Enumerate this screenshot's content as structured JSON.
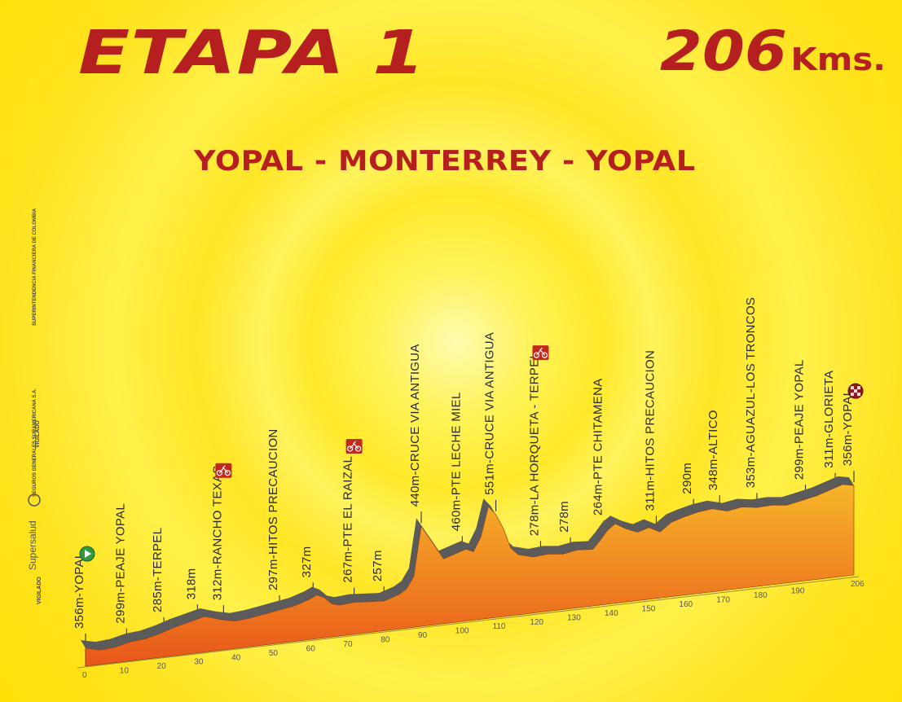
{
  "title": "ETAPA 1",
  "distance": {
    "value": "206",
    "unit": "Kms."
  },
  "route": "YOPAL - MONTERREY - YOPAL",
  "sponsors": {
    "vigilado": "VIGILADO",
    "supersalud": "Supersalud",
    "financiera": "SUPERINTENDENCIA FINANCIERA DE COLOMBIA",
    "seguros": "SEGUROS GENERALES SURAMERICANA S.A."
  },
  "colors": {
    "title": "#b51f1f",
    "fill_top": "#f7b52a",
    "fill_bottom": "#e8561a",
    "road": "#5b5b5b"
  },
  "chart_data": {
    "type": "area",
    "x_unit": "km",
    "x_ticks": [
      0,
      10,
      20,
      30,
      40,
      50,
      60,
      70,
      80,
      90,
      100,
      110,
      120,
      130,
      140,
      150,
      160,
      170,
      180,
      190,
      206
    ],
    "profile": [
      [
        0,
        300
      ],
      [
        4,
        294
      ],
      [
        8,
        296
      ],
      [
        12,
        302
      ],
      [
        16,
        304
      ],
      [
        20,
        310
      ],
      [
        24,
        318
      ],
      [
        28,
        324
      ],
      [
        32,
        330
      ],
      [
        36,
        322
      ],
      [
        40,
        316
      ],
      [
        44,
        318
      ],
      [
        48,
        322
      ],
      [
        52,
        326
      ],
      [
        56,
        330
      ],
      [
        60,
        338
      ],
      [
        62,
        344
      ],
      [
        64,
        338
      ],
      [
        66,
        326
      ],
      [
        68,
        322
      ],
      [
        72,
        324
      ],
      [
        76,
        322
      ],
      [
        80,
        320
      ],
      [
        84,
        328
      ],
      [
        86,
        336
      ],
      [
        88,
        356
      ],
      [
        90,
        440
      ],
      [
        92,
        420
      ],
      [
        94,
        400
      ],
      [
        96,
        380
      ],
      [
        100,
        388
      ],
      [
        102,
        392
      ],
      [
        104,
        386
      ],
      [
        106,
        410
      ],
      [
        108,
        460
      ],
      [
        110,
        445
      ],
      [
        112,
        420
      ],
      [
        114,
        385
      ],
      [
        116,
        372
      ],
      [
        120,
        365
      ],
      [
        124,
        367
      ],
      [
        128,
        364
      ],
      [
        132,
        368
      ],
      [
        136,
        366
      ],
      [
        138,
        380
      ],
      [
        140,
        396
      ],
      [
        142,
        405
      ],
      [
        145,
        394
      ],
      [
        148,
        386
      ],
      [
        151,
        392
      ],
      [
        154,
        382
      ],
      [
        157,
        396
      ],
      [
        160,
        402
      ],
      [
        164,
        408
      ],
      [
        168,
        411
      ],
      [
        172,
        404
      ],
      [
        176,
        408
      ],
      [
        180,
        404
      ],
      [
        184,
        405
      ],
      [
        188,
        402
      ],
      [
        192,
        407
      ],
      [
        196,
        412
      ],
      [
        200,
        420
      ],
      [
        203,
        426
      ],
      [
        206,
        422
      ]
    ],
    "waypoints": [
      {
        "km": 0,
        "label": "356m-YOPAL",
        "icon": "start"
      },
      {
        "km": 11,
        "label": "299m-PEAJE YOPAL"
      },
      {
        "km": 21,
        "label": "285m-TERPEL"
      },
      {
        "km": 30,
        "label": "318m"
      },
      {
        "km": 37,
        "label": "312m-RANCHO TEXAS",
        "icon": "sprint"
      },
      {
        "km": 52,
        "label": "297m-HITOS PRECAUCION"
      },
      {
        "km": 61,
        "label": "327m"
      },
      {
        "km": 72,
        "label": "267m-PTE EL RAIZAL",
        "icon": "sprint"
      },
      {
        "km": 80,
        "label": "257m"
      },
      {
        "km": 90,
        "label": "440m-CRUCE VIA ANTIGUA"
      },
      {
        "km": 101,
        "label": "460m-PTE LECHE MIEL"
      },
      {
        "km": 110,
        "label": "551m-CRUCE VIA ANTIGUA"
      },
      {
        "km": 122,
        "label": "278m-LA HORQUETA - TERPEL",
        "icon": "sprint"
      },
      {
        "km": 130,
        "label": "278m"
      },
      {
        "km": 139,
        "label": "264m-PTE CHITAMENA"
      },
      {
        "km": 153,
        "label": "311m-HITOS PRECAUCION"
      },
      {
        "km": 163,
        "label": "290m"
      },
      {
        "km": 170,
        "label": "348m-ALTICO"
      },
      {
        "km": 180,
        "label": "353m-AGUAZUL-LOS TRONCOS"
      },
      {
        "km": 193,
        "label": "299m-PEAJE YOPAL"
      },
      {
        "km": 201,
        "label": "311m-GLORIETA"
      },
      {
        "km": 206,
        "label": "356m-YOPAL",
        "icon": "finish"
      }
    ]
  }
}
